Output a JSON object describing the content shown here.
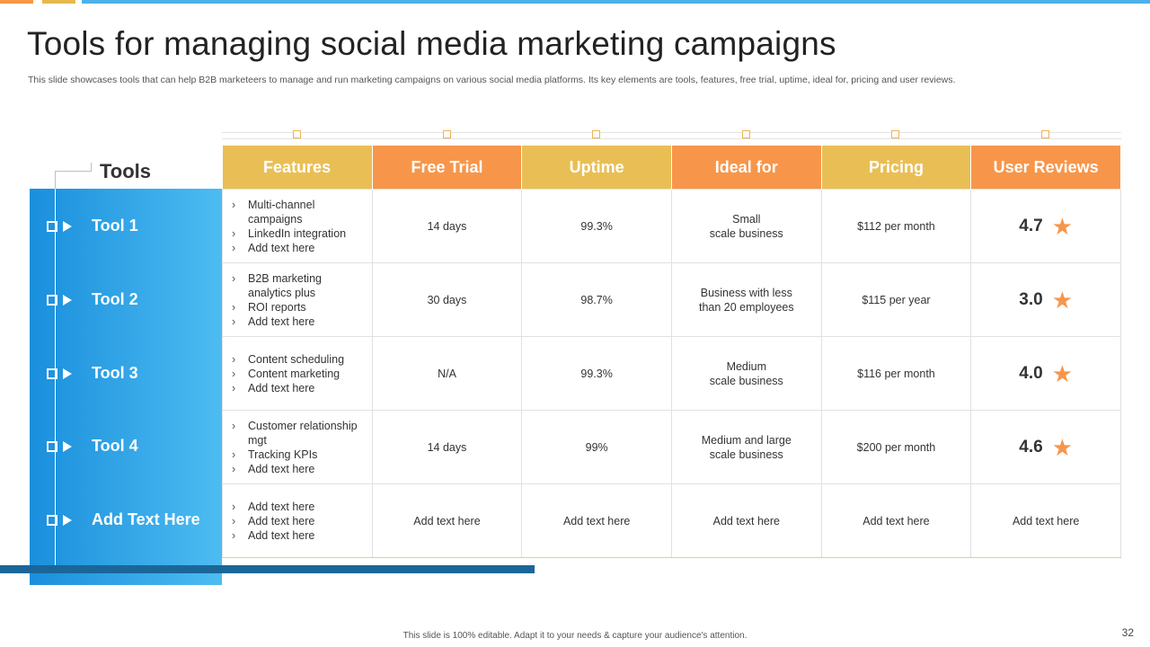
{
  "title": "Tools for managing social media marketing campaigns",
  "subtitle": "This slide showcases tools that can help B2B marketeers to manage and run marketing campaigns on various social media platforms. Its key elements are tools, features, free trial, uptime, ideal for, pricing and user reviews.",
  "tools_heading": "Tools",
  "tools": [
    "Tool 1",
    "Tool 2",
    "Tool 3",
    "Tool 4",
    "Add Text Here"
  ],
  "columns": [
    "Features",
    "Free Trial",
    "Uptime",
    "Ideal for",
    "Pricing",
    "User Reviews"
  ],
  "rows": [
    {
      "features": [
        "Multi-channel campaigns",
        "LinkedIn integration",
        "Add text here"
      ],
      "free_trial": "14 days",
      "uptime": "99.3%",
      "ideal_for": "Small\nscale business",
      "pricing": "$112 per month",
      "rating": "4.7"
    },
    {
      "features": [
        "B2B marketing analytics plus",
        "ROI reports",
        "Add text here"
      ],
      "free_trial": "30 days",
      "uptime": "98.7%",
      "ideal_for": "Business with less\nthan 20 employees",
      "pricing": "$115 per year",
      "rating": "3.0"
    },
    {
      "features": [
        "Content scheduling",
        "Content marketing",
        "Add text here"
      ],
      "free_trial": "N/A",
      "uptime": "99.3%",
      "ideal_for": "Medium\nscale business",
      "pricing": "$116 per month",
      "rating": "4.0"
    },
    {
      "features": [
        "Customer relationship mgt",
        "Tracking KPIs",
        "Add text here"
      ],
      "free_trial": "14 days",
      "uptime": "99%",
      "ideal_for": "Medium and large\nscale business",
      "pricing": "$200 per month",
      "rating": "4.6"
    },
    {
      "features": [
        "Add text here",
        "Add text here",
        "Add text here"
      ],
      "free_trial": "Add text here",
      "uptime": "Add text here",
      "ideal_for": "Add text here",
      "pricing": "Add text here",
      "reviews_text": "Add text here"
    }
  ],
  "icons": {
    "rating": "star-icon",
    "tool_marker": "square-icon",
    "tool_pointer": "play-triangle-icon",
    "bullet": "chevron-right-icon"
  },
  "colors": {
    "yellow_header": "#e9bf55",
    "orange_header": "#f7964a",
    "panel_blue": "#1a8fdc",
    "panel_light_blue": "#4dbcf2",
    "dark_bar": "#1a6699"
  },
  "footer": "This slide is 100% editable. Adapt it to your needs & capture your audience's attention.",
  "page_number": "32"
}
